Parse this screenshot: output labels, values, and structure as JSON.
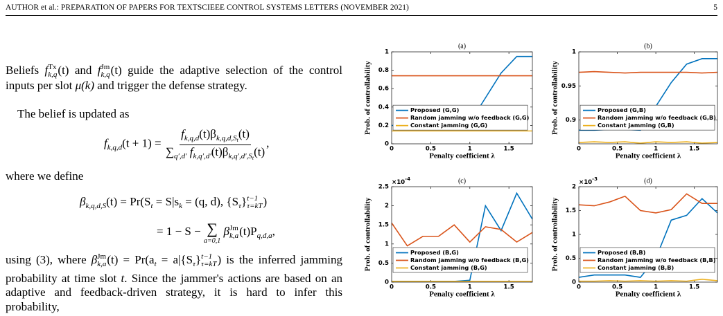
{
  "header": {
    "running_title": "AUTHOR et al.: PREPARATION OF PAPERS FOR TEXTSCIEEE CONTROL SYSTEMS LETTERS (NOVEMBER 2021)",
    "page_number": "5"
  },
  "body": {
    "p1": [
      "Beliefs ",
      "f",
      "Tx",
      "k,q",
      "(t) and ",
      "f",
      "Jm",
      "k,q",
      "(t) guide the adaptive selection of the control inputs per slot ",
      "μ(k)",
      " and trigger the defense strategy."
    ],
    "p2": "The belief is updated as",
    "eq1": {
      "lhs": [
        "f",
        "k,q,d",
        "(t + 1) ="
      ],
      "num": [
        "f",
        "k,q,d",
        "(t)β",
        "k,q,d,S",
        "t",
        "(t)"
      ],
      "den": [
        "∑",
        "q′,d′",
        "f",
        "k,q′,d′",
        "(t)β",
        "k,q′,d′,S",
        "t",
        "(t)"
      ],
      "end": ","
    },
    "p3": "where we define",
    "eq2": {
      "line1": [
        "β",
        "k,q,d,S",
        "(t) = Pr(S",
        "t",
        " = S|s",
        "k",
        " = (q, d), {S",
        "τ",
        "}",
        "t−1",
        "τ=kT",
        ")"
      ],
      "line2": [
        "= 1 − S − ",
        "∑",
        "a=0,1",
        "β",
        "Jm",
        "k,a",
        "(t)P",
        "q,d,a",
        ","
      ]
    },
    "p4": [
      "using (3), where ",
      "β",
      "Jm",
      "k,a",
      "(t) = Pr(a",
      "t",
      " = a|{S",
      "τ",
      "}",
      "t−1",
      "τ=kT",
      ") is the inferred jamming probability at time slot ",
      "t",
      ". Since the jammer's actions are based on an adaptive and feedback-driven strategy, it is hard to infer this probability,"
    ]
  },
  "chart_data": [
    {
      "type": "line",
      "title": "(a)",
      "xlabel": "Penalty coefficient λ",
      "ylabel": "Prob. of controllability",
      "x": [
        0,
        0.2,
        0.4,
        0.6,
        0.8,
        1.0,
        1.2,
        1.4,
        1.6,
        1.8
      ],
      "xlim": [
        0,
        1.8
      ],
      "xticks": [
        0,
        0.5,
        1,
        1.5
      ],
      "ylim": [
        0,
        1
      ],
      "yticks": [
        0,
        0.2,
        0.4,
        0.6,
        0.8,
        1
      ],
      "legend_loc": "center left",
      "series": [
        {
          "name": "Proposed (G,G)",
          "color": "#0072bd",
          "values": [
            0.2,
            0.2,
            0.2,
            0.2,
            0.2,
            0.23,
            0.5,
            0.77,
            0.95,
            0.95
          ]
        },
        {
          "name": "Random jamming w/o feedback (G,G)",
          "color": "#d95319",
          "values": [
            0.74,
            0.74,
            0.74,
            0.74,
            0.74,
            0.74,
            0.74,
            0.74,
            0.74,
            0.74
          ]
        },
        {
          "name": "Constant jamming (G,G)",
          "color": "#edb120",
          "values": [
            0.14,
            0.14,
            0.14,
            0.14,
            0.14,
            0.14,
            0.14,
            0.14,
            0.14,
            0.14
          ]
        }
      ]
    },
    {
      "type": "line",
      "title": "(b)",
      "xlabel": "Penalty coefficient λ",
      "ylabel": "Prob. of controllability",
      "x": [
        0,
        0.2,
        0.4,
        0.6,
        0.8,
        1.0,
        1.2,
        1.4,
        1.6,
        1.8
      ],
      "xlim": [
        0,
        1.8
      ],
      "xticks": [
        0,
        0.5,
        1,
        1.5
      ],
      "ylim": [
        0.865,
        1
      ],
      "yticks": [
        0.9,
        0.95,
        1
      ],
      "legend_loc": "center left",
      "series": [
        {
          "name": "Proposed (G,B)",
          "color": "#0072bd",
          "values": [
            0.885,
            0.885,
            0.886,
            0.886,
            0.885,
            0.92,
            0.955,
            0.982,
            0.99,
            0.99
          ]
        },
        {
          "name": "Random jamming w/o feedback (G,B)",
          "color": "#d95319",
          "values": [
            0.97,
            0.971,
            0.97,
            0.969,
            0.97,
            0.97,
            0.97,
            0.97,
            0.969,
            0.97
          ]
        },
        {
          "name": "Constant jamming (G,B)",
          "color": "#edb120",
          "values": [
            0.867,
            0.868,
            0.867,
            0.868,
            0.866,
            0.868,
            0.867,
            0.868,
            0.866,
            0.867
          ]
        }
      ]
    },
    {
      "type": "line",
      "title": "(c)",
      "xlabel": "Penalty coefficient λ",
      "ylabel": "Prob. of controllability",
      "y_exponent_label": {
        "base": "×10",
        "exponent": "-4"
      },
      "x": [
        0,
        0.2,
        0.4,
        0.6,
        0.8,
        1.0,
        1.2,
        1.4,
        1.6,
        1.8
      ],
      "xlim": [
        0,
        1.8
      ],
      "xticks": [
        0,
        0.5,
        1,
        1.5
      ],
      "ylim": [
        0,
        2.5
      ],
      "yticks": [
        0,
        0.5,
        1,
        1.5,
        2,
        2.5
      ],
      "legend_loc": "lower left",
      "series": [
        {
          "name": "Proposed (B,G)",
          "color": "#0072bd",
          "values": [
            0.02,
            0.02,
            0.02,
            0.02,
            0.02,
            0.05,
            2.0,
            1.35,
            2.33,
            1.65
          ]
        },
        {
          "name": "Random jamming w/o feedback (B,G)",
          "color": "#d95319",
          "values": [
            1.55,
            0.95,
            1.2,
            1.2,
            1.5,
            1.05,
            1.45,
            1.38,
            1.05,
            1.3
          ]
        },
        {
          "name": "Constant jamming (B,G)",
          "color": "#edb120",
          "values": [
            0.02,
            0.02,
            0.02,
            0.02,
            0.02,
            0.02,
            0.02,
            0.02,
            0.02,
            0.02
          ]
        }
      ]
    },
    {
      "type": "line",
      "title": "(d)",
      "xlabel": "Penalty coefficient λ",
      "ylabel": "Prob. of controllability",
      "y_exponent_label": {
        "base": "×10",
        "exponent": "-3"
      },
      "x": [
        0,
        0.2,
        0.4,
        0.6,
        0.8,
        1.0,
        1.2,
        1.4,
        1.6,
        1.8
      ],
      "xlim": [
        0,
        1.8
      ],
      "xticks": [
        0,
        0.5,
        1,
        1.5
      ],
      "ylim": [
        0,
        2
      ],
      "yticks": [
        0,
        0.5,
        1,
        1.5,
        2
      ],
      "legend_loc": "lower left",
      "series": [
        {
          "name": "Proposed (B,B)",
          "color": "#0072bd",
          "values": [
            0.1,
            0.15,
            0.15,
            0.15,
            0.1,
            0.5,
            1.3,
            1.4,
            1.75,
            1.45
          ]
        },
        {
          "name": "Random jamming w/o feedback (B,B)",
          "color": "#d95319",
          "values": [
            1.62,
            1.6,
            1.68,
            1.8,
            1.5,
            1.45,
            1.52,
            1.85,
            1.65,
            1.65
          ]
        },
        {
          "name": "Constant jamming (B,B)",
          "color": "#edb120",
          "values": [
            0.02,
            0.02,
            0.03,
            0.02,
            0.03,
            0.02,
            0.03,
            0.02,
            0.06,
            0.03
          ]
        }
      ]
    }
  ]
}
